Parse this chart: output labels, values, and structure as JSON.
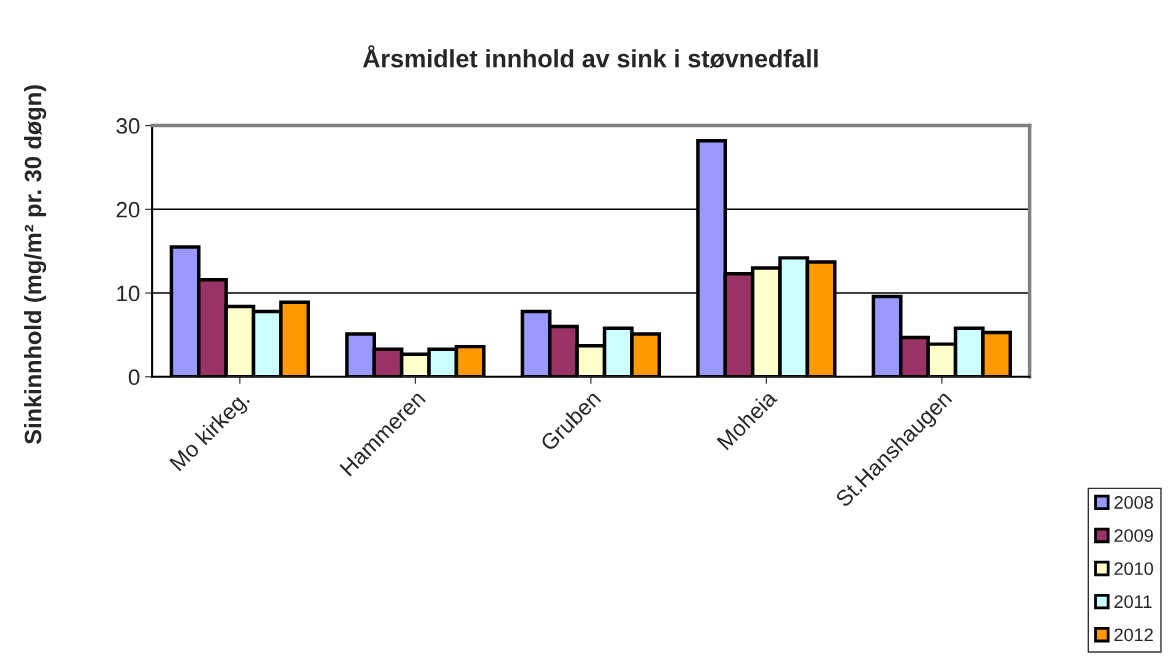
{
  "chart_data": {
    "type": "bar",
    "title": "Årsmidlet innhold av sink i støvnedfall",
    "ylabel": "Sinkinnhold (mg/m² pr. 30 døgn)",
    "categories": [
      "Mo kirkeg.",
      "Hammeren",
      "Gruben",
      "Moheia",
      "St.Hanshaugen"
    ],
    "series": [
      {
        "name": "2008",
        "color": "#9999ff",
        "values": [
          15.5,
          5.1,
          7.8,
          28.2,
          9.6
        ]
      },
      {
        "name": "2009",
        "color": "#993366",
        "values": [
          11.6,
          3.3,
          6.0,
          12.3,
          4.7
        ]
      },
      {
        "name": "2010",
        "color": "#ffffcc",
        "values": [
          8.4,
          2.7,
          3.7,
          13.0,
          3.9
        ]
      },
      {
        "name": "2011",
        "color": "#ccffff",
        "values": [
          7.8,
          3.3,
          5.8,
          14.2,
          5.8
        ]
      },
      {
        "name": "2012",
        "color": "#ff9900",
        "values": [
          8.9,
          3.6,
          5.1,
          13.7,
          5.3
        ]
      }
    ],
    "ylim": [
      0,
      30
    ],
    "yticks": [
      0,
      10,
      20,
      30
    ],
    "grid": "y",
    "legend": "bottom right"
  }
}
